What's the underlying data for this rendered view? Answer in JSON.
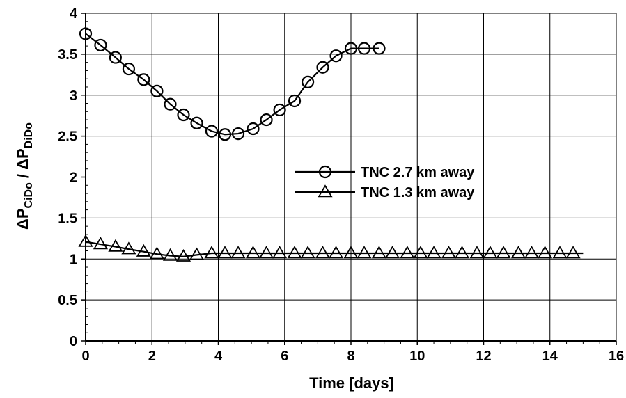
{
  "chart_data": {
    "type": "line",
    "xlabel": "Time  [days]",
    "ylabel": {
      "prefix": "ΔP",
      "sub1": "CiDo",
      "mid": " / ΔP",
      "sub2": "DiDo"
    },
    "xlim": [
      0,
      16
    ],
    "ylim": [
      0,
      4
    ],
    "x_ticks": [
      "0",
      "2",
      "4",
      "6",
      "8",
      "10",
      "12",
      "14",
      "16"
    ],
    "y_ticks": [
      "0",
      "0.5",
      "1",
      "1.5",
      "2",
      "2.5",
      "3",
      "3.5",
      "4"
    ],
    "grid": true,
    "legend_position": "center-right",
    "series": [
      {
        "name": "TNC 2.7 km away",
        "marker": "circle",
        "color": "#000000",
        "x": [
          0.0,
          0.45,
          0.9,
          1.3,
          1.75,
          2.15,
          2.55,
          2.95,
          3.35,
          3.8,
          4.2,
          4.6,
          5.05,
          5.45,
          5.85,
          6.3,
          6.7,
          7.15,
          7.55,
          8.0,
          8.4,
          8.85
        ],
        "y": [
          3.75,
          3.61,
          3.46,
          3.32,
          3.19,
          3.05,
          2.89,
          2.76,
          2.66,
          2.56,
          2.52,
          2.53,
          2.59,
          2.7,
          2.82,
          2.93,
          3.16,
          3.34,
          3.48,
          3.57,
          3.57,
          3.57
        ]
      },
      {
        "name": "TNC 1.3 km away",
        "marker": "triangle",
        "color": "#000000",
        "x": [
          0.0,
          0.45,
          0.9,
          1.3,
          1.75,
          2.15,
          2.55,
          2.95,
          3.35,
          3.8,
          4.2,
          4.6,
          5.05,
          5.45,
          5.85,
          6.3,
          6.7,
          7.15,
          7.55,
          8.0,
          8.4,
          8.85,
          9.25,
          9.7,
          10.1,
          10.5,
          10.95,
          11.35,
          11.8,
          12.2,
          12.6,
          13.05,
          13.45,
          13.85,
          14.3,
          14.7
        ],
        "y": [
          1.21,
          1.18,
          1.15,
          1.12,
          1.09,
          1.06,
          1.04,
          1.03,
          1.05,
          1.07,
          1.07,
          1.07,
          1.07,
          1.07,
          1.07,
          1.07,
          1.07,
          1.07,
          1.07,
          1.07,
          1.07,
          1.07,
          1.07,
          1.07,
          1.07,
          1.07,
          1.07,
          1.07,
          1.07,
          1.07,
          1.07,
          1.07,
          1.07,
          1.07,
          1.07,
          1.07
        ],
        "line_x_end": 15.0
      }
    ]
  }
}
